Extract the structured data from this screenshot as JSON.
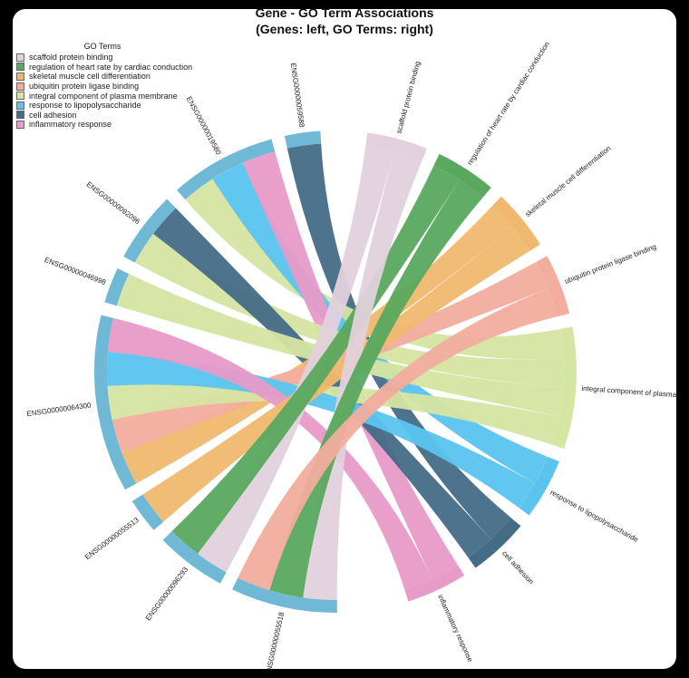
{
  "chart_data": {
    "type": "chord",
    "title_line1": "Gene - GO Term Associations",
    "title_line2": "(Genes: left, GO Terms: right)",
    "legend_title": "GO Terms",
    "genes": [
      "ENSG00000059588",
      "ENSG00000019580",
      "ENSG00000092096",
      "ENSG00000046998",
      "ENSG00000064300",
      "ENSG00000055513",
      "ENSG00000096293",
      "ENSG00000055518"
    ],
    "go_terms": [
      {
        "name": "scaffold protein binding",
        "color": "#e2d1dc"
      },
      {
        "name": "regulation of heart rate by cardiac conduction",
        "color": "#58a85e"
      },
      {
        "name": "skeletal muscle cell differentiation",
        "color": "#f0b86e"
      },
      {
        "name": "ubiquitin protein ligase binding",
        "color": "#f2ad9e"
      },
      {
        "name": "integral component of plasma membrane",
        "color": "#d5e5a2"
      },
      {
        "name": "response to lipopolysaccharide",
        "color": "#5ac4ef"
      },
      {
        "name": "cell adhesion",
        "color": "#456c86"
      },
      {
        "name": "inflammatory response",
        "color": "#e79bc8"
      }
    ],
    "gene_color": "#6fb8d6",
    "links": [
      {
        "gene": "ENSG00000059588",
        "term": "cell adhesion"
      },
      {
        "gene": "ENSG00000019580",
        "term": "integral component of plasma membrane"
      },
      {
        "gene": "ENSG00000019580",
        "term": "response to lipopolysaccharide"
      },
      {
        "gene": "ENSG00000019580",
        "term": "inflammatory response"
      },
      {
        "gene": "ENSG00000092096",
        "term": "integral component of plasma membrane"
      },
      {
        "gene": "ENSG00000092096",
        "term": "cell adhesion"
      },
      {
        "gene": "ENSG00000046998",
        "term": "integral component of plasma membrane"
      },
      {
        "gene": "ENSG00000064300",
        "term": "skeletal muscle cell differentiation"
      },
      {
        "gene": "ENSG00000064300",
        "term": "ubiquitin protein ligase binding"
      },
      {
        "gene": "ENSG00000064300",
        "term": "integral component of plasma membrane"
      },
      {
        "gene": "ENSG00000064300",
        "term": "response to lipopolysaccharide"
      },
      {
        "gene": "ENSG00000064300",
        "term": "inflammatory response"
      },
      {
        "gene": "ENSG00000055513",
        "term": "skeletal muscle cell differentiation"
      },
      {
        "gene": "ENSG00000096293",
        "term": "scaffold protein binding"
      },
      {
        "gene": "ENSG00000096293",
        "term": "regulation of heart rate by cardiac conduction"
      },
      {
        "gene": "ENSG00000055518",
        "term": "scaffold protein binding"
      },
      {
        "gene": "ENSG00000055518",
        "term": "regulation of heart rate by cardiac conduction"
      },
      {
        "gene": "ENSG00000055518",
        "term": "ubiquitin protein ligase binding"
      }
    ]
  }
}
